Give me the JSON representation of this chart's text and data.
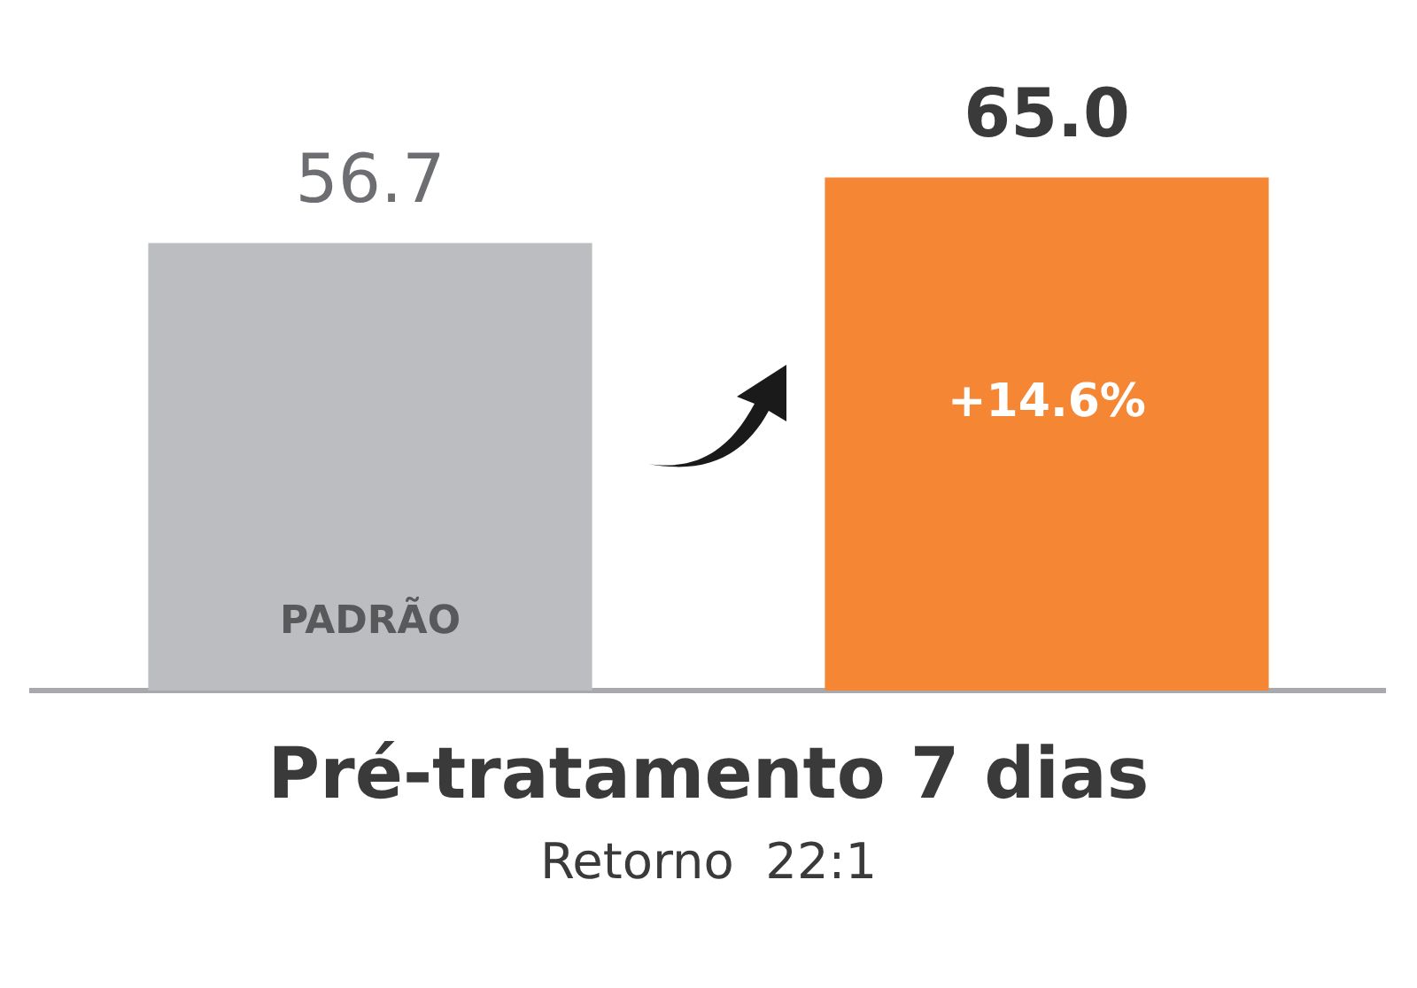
{
  "chart_data": {
    "type": "bar",
    "categories": [
      "PADRÃO",
      null
    ],
    "values": [
      56.7,
      65.0
    ],
    "colors": [
      "#bcbdc0",
      "#f58634"
    ],
    "value_labels": [
      "56.7",
      "65.0"
    ],
    "xlabel": "Pré-tratamento 7 dias",
    "annotations": [
      "+14.6%",
      "Retorno  22:1"
    ],
    "grid": false,
    "legend": false
  }
}
